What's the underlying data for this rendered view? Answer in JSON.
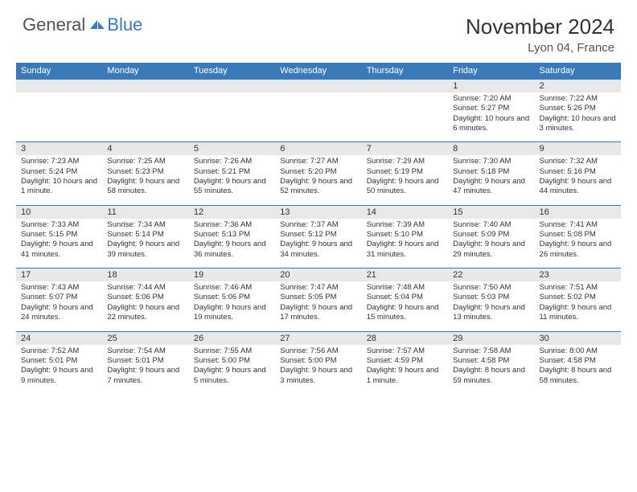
{
  "logo": {
    "text_general": "General",
    "text_blue": "Blue",
    "icon_fill": "#3b7ab8"
  },
  "title": "November 2024",
  "location": "Lyon 04, France",
  "colors": {
    "header_bg": "#3b7ab8",
    "header_text": "#ffffff",
    "daynum_bg": "#e8e8e8",
    "cell_text": "#333333",
    "divider": "#3b7ab8"
  },
  "day_headers": [
    "Sunday",
    "Monday",
    "Tuesday",
    "Wednesday",
    "Thursday",
    "Friday",
    "Saturday"
  ],
  "weeks": [
    [
      null,
      null,
      null,
      null,
      null,
      {
        "num": "1",
        "sunrise": "Sunrise: 7:20 AM",
        "sunset": "Sunset: 5:27 PM",
        "daylight": "Daylight: 10 hours and 6 minutes."
      },
      {
        "num": "2",
        "sunrise": "Sunrise: 7:22 AM",
        "sunset": "Sunset: 5:26 PM",
        "daylight": "Daylight: 10 hours and 3 minutes."
      }
    ],
    [
      {
        "num": "3",
        "sunrise": "Sunrise: 7:23 AM",
        "sunset": "Sunset: 5:24 PM",
        "daylight": "Daylight: 10 hours and 1 minute."
      },
      {
        "num": "4",
        "sunrise": "Sunrise: 7:25 AM",
        "sunset": "Sunset: 5:23 PM",
        "daylight": "Daylight: 9 hours and 58 minutes."
      },
      {
        "num": "5",
        "sunrise": "Sunrise: 7:26 AM",
        "sunset": "Sunset: 5:21 PM",
        "daylight": "Daylight: 9 hours and 55 minutes."
      },
      {
        "num": "6",
        "sunrise": "Sunrise: 7:27 AM",
        "sunset": "Sunset: 5:20 PM",
        "daylight": "Daylight: 9 hours and 52 minutes."
      },
      {
        "num": "7",
        "sunrise": "Sunrise: 7:29 AM",
        "sunset": "Sunset: 5:19 PM",
        "daylight": "Daylight: 9 hours and 50 minutes."
      },
      {
        "num": "8",
        "sunrise": "Sunrise: 7:30 AM",
        "sunset": "Sunset: 5:18 PM",
        "daylight": "Daylight: 9 hours and 47 minutes."
      },
      {
        "num": "9",
        "sunrise": "Sunrise: 7:32 AM",
        "sunset": "Sunset: 5:16 PM",
        "daylight": "Daylight: 9 hours and 44 minutes."
      }
    ],
    [
      {
        "num": "10",
        "sunrise": "Sunrise: 7:33 AM",
        "sunset": "Sunset: 5:15 PM",
        "daylight": "Daylight: 9 hours and 41 minutes."
      },
      {
        "num": "11",
        "sunrise": "Sunrise: 7:34 AM",
        "sunset": "Sunset: 5:14 PM",
        "daylight": "Daylight: 9 hours and 39 minutes."
      },
      {
        "num": "12",
        "sunrise": "Sunrise: 7:36 AM",
        "sunset": "Sunset: 5:13 PM",
        "daylight": "Daylight: 9 hours and 36 minutes."
      },
      {
        "num": "13",
        "sunrise": "Sunrise: 7:37 AM",
        "sunset": "Sunset: 5:12 PM",
        "daylight": "Daylight: 9 hours and 34 minutes."
      },
      {
        "num": "14",
        "sunrise": "Sunrise: 7:39 AM",
        "sunset": "Sunset: 5:10 PM",
        "daylight": "Daylight: 9 hours and 31 minutes."
      },
      {
        "num": "15",
        "sunrise": "Sunrise: 7:40 AM",
        "sunset": "Sunset: 5:09 PM",
        "daylight": "Daylight: 9 hours and 29 minutes."
      },
      {
        "num": "16",
        "sunrise": "Sunrise: 7:41 AM",
        "sunset": "Sunset: 5:08 PM",
        "daylight": "Daylight: 9 hours and 26 minutes."
      }
    ],
    [
      {
        "num": "17",
        "sunrise": "Sunrise: 7:43 AM",
        "sunset": "Sunset: 5:07 PM",
        "daylight": "Daylight: 9 hours and 24 minutes."
      },
      {
        "num": "18",
        "sunrise": "Sunrise: 7:44 AM",
        "sunset": "Sunset: 5:06 PM",
        "daylight": "Daylight: 9 hours and 22 minutes."
      },
      {
        "num": "19",
        "sunrise": "Sunrise: 7:46 AM",
        "sunset": "Sunset: 5:06 PM",
        "daylight": "Daylight: 9 hours and 19 minutes."
      },
      {
        "num": "20",
        "sunrise": "Sunrise: 7:47 AM",
        "sunset": "Sunset: 5:05 PM",
        "daylight": "Daylight: 9 hours and 17 minutes."
      },
      {
        "num": "21",
        "sunrise": "Sunrise: 7:48 AM",
        "sunset": "Sunset: 5:04 PM",
        "daylight": "Daylight: 9 hours and 15 minutes."
      },
      {
        "num": "22",
        "sunrise": "Sunrise: 7:50 AM",
        "sunset": "Sunset: 5:03 PM",
        "daylight": "Daylight: 9 hours and 13 minutes."
      },
      {
        "num": "23",
        "sunrise": "Sunrise: 7:51 AM",
        "sunset": "Sunset: 5:02 PM",
        "daylight": "Daylight: 9 hours and 11 minutes."
      }
    ],
    [
      {
        "num": "24",
        "sunrise": "Sunrise: 7:52 AM",
        "sunset": "Sunset: 5:01 PM",
        "daylight": "Daylight: 9 hours and 9 minutes."
      },
      {
        "num": "25",
        "sunrise": "Sunrise: 7:54 AM",
        "sunset": "Sunset: 5:01 PM",
        "daylight": "Daylight: 9 hours and 7 minutes."
      },
      {
        "num": "26",
        "sunrise": "Sunrise: 7:55 AM",
        "sunset": "Sunset: 5:00 PM",
        "daylight": "Daylight: 9 hours and 5 minutes."
      },
      {
        "num": "27",
        "sunrise": "Sunrise: 7:56 AM",
        "sunset": "Sunset: 5:00 PM",
        "daylight": "Daylight: 9 hours and 3 minutes."
      },
      {
        "num": "28",
        "sunrise": "Sunrise: 7:57 AM",
        "sunset": "Sunset: 4:59 PM",
        "daylight": "Daylight: 9 hours and 1 minute."
      },
      {
        "num": "29",
        "sunrise": "Sunrise: 7:58 AM",
        "sunset": "Sunset: 4:58 PM",
        "daylight": "Daylight: 8 hours and 59 minutes."
      },
      {
        "num": "30",
        "sunrise": "Sunrise: 8:00 AM",
        "sunset": "Sunset: 4:58 PM",
        "daylight": "Daylight: 8 hours and 58 minutes."
      }
    ]
  ]
}
